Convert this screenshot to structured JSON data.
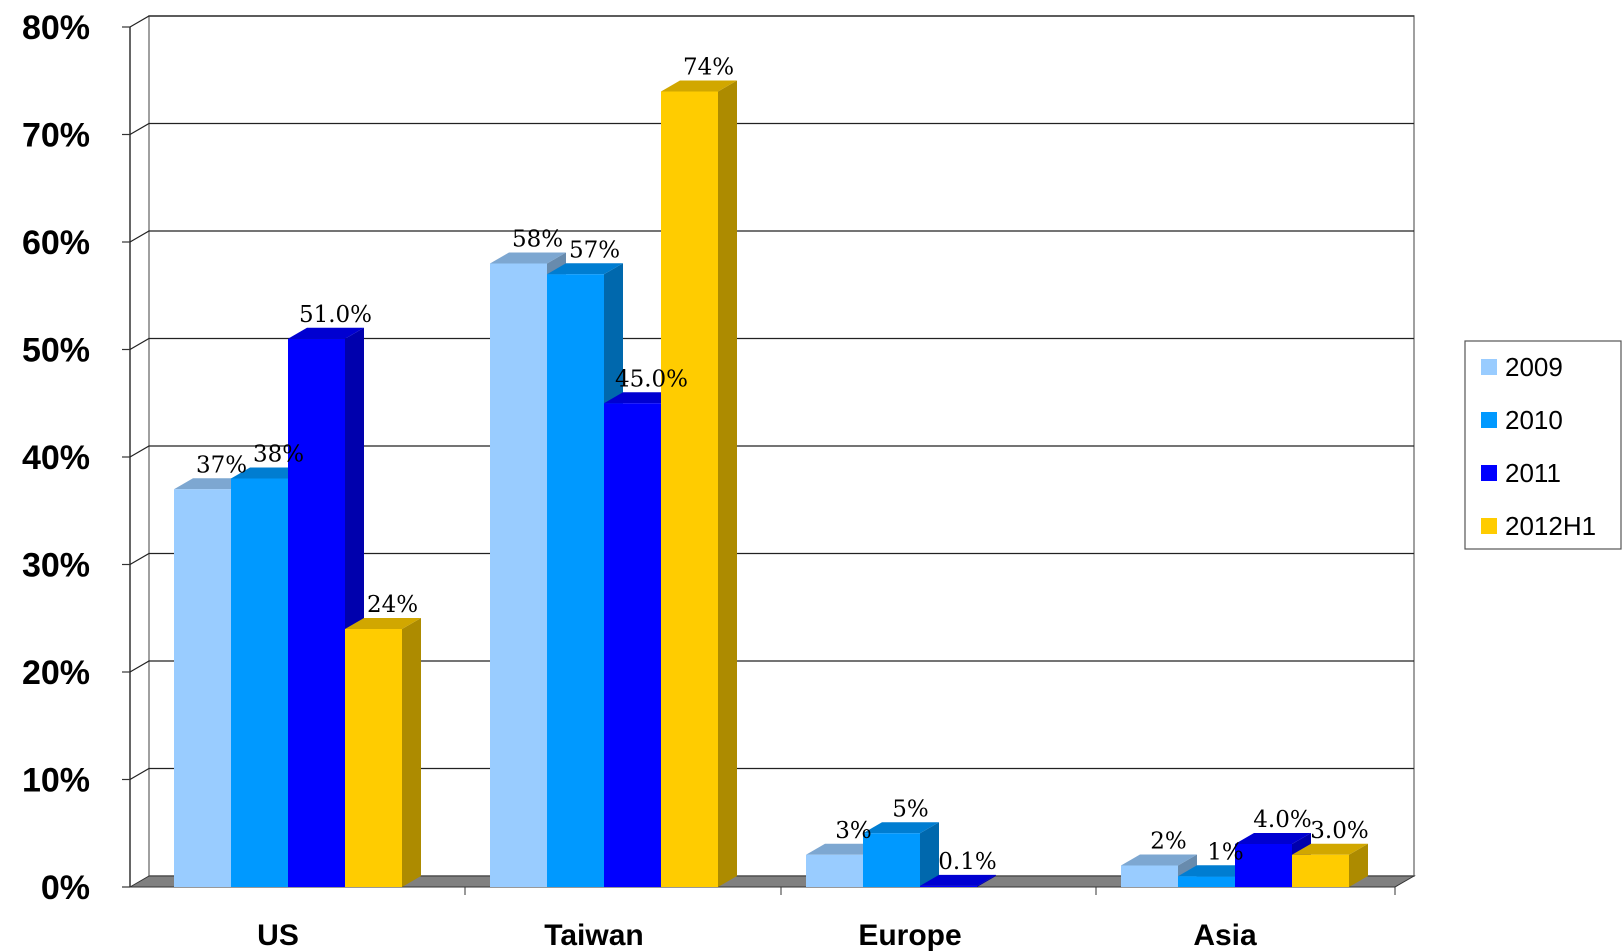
{
  "chart_data": {
    "type": "bar",
    "style": "3d-clustered",
    "categories": [
      "US",
      "Taiwan",
      "Europe",
      "Asia"
    ],
    "series": [
      {
        "name": "2009",
        "values": [
          37,
          58,
          3,
          2
        ],
        "labels": [
          "37%",
          "58%",
          "3%",
          "2%"
        ],
        "color": "#99CCFF"
      },
      {
        "name": "2010",
        "values": [
          38,
          57,
          5,
          1
        ],
        "labels": [
          "38%",
          "57%",
          "5%",
          "1%"
        ],
        "color": "#0099FF"
      },
      {
        "name": "2011",
        "values": [
          51,
          45,
          0.1,
          4
        ],
        "labels": [
          "51.0%",
          "45.0%",
          "0.1%",
          "4.0%"
        ],
        "color": "#0000FF"
      },
      {
        "name": "2012H1",
        "values": [
          24,
          74,
          null,
          3
        ],
        "labels": [
          "24%",
          "74%",
          "",
          "3.0%"
        ],
        "color": "#FFCC00"
      }
    ],
    "y_ticks": [
      "0%",
      "10%",
      "20%",
      "30%",
      "40%",
      "50%",
      "60%",
      "70%",
      "80%"
    ],
    "ylim": [
      0,
      80
    ],
    "grid": true,
    "legend_position": "right",
    "title": "",
    "xlabel": "",
    "ylabel": ""
  }
}
